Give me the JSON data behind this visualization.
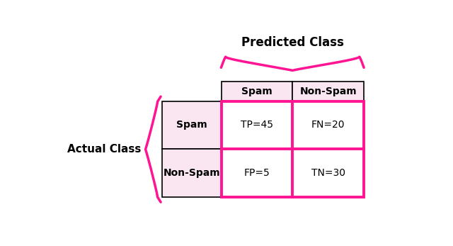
{
  "title": "Predicted Class",
  "actual_label": "Actual Class",
  "col_headers": [
    "Spam",
    "Non-Spam"
  ],
  "row_headers": [
    "Spam",
    "Non-Spam"
  ],
  "cells": [
    [
      "TP=45",
      "FN=20"
    ],
    [
      "FP=5",
      "TN=30"
    ]
  ],
  "header_bg": "#f9e6f0",
  "cell_bg": "#ffffff",
  "highlight_color": "#ff1493",
  "text_color": "#000000",
  "brace_color": "#ff1493",
  "grid_color": "#000000",
  "font_size_title": 12,
  "font_size_header": 10,
  "font_size_cell": 10,
  "font_size_axis_label": 11
}
